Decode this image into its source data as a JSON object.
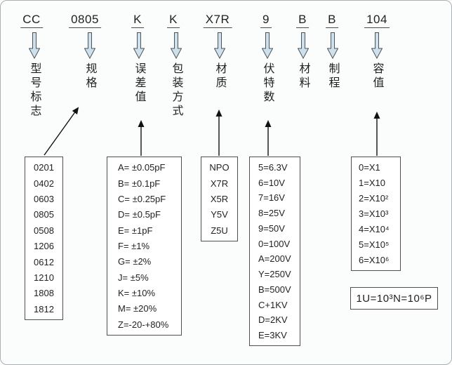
{
  "columns": [
    {
      "code": "CC",
      "label": "型号标志"
    },
    {
      "code": "0805",
      "label": "规格"
    },
    {
      "code": "K",
      "label": "误差值"
    },
    {
      "code": "K",
      "label": "包装方式"
    },
    {
      "code": "X7R",
      "label": "材质"
    },
    {
      "code": "9",
      "label": "伏特数"
    },
    {
      "code": "B",
      "label": "材料"
    },
    {
      "code": "B",
      "label": "制程"
    },
    {
      "code": "104",
      "label": "容值"
    }
  ],
  "boxes": {
    "sizes": [
      "0201",
      "0402",
      "0603",
      "0805",
      "0508",
      "1206",
      "0612",
      "1210",
      "1808",
      "1812"
    ],
    "tolerance": [
      "A= ±0.05pF",
      "B= ±0.1pF",
      "C= ±0.25pF",
      "D= ±0.5pF",
      "E= ±1pF",
      "F= ±1%",
      "G= ±2%",
      "J= ±5%",
      "K= ±10%",
      "M= ±20%",
      "Z=-20-+80%"
    ],
    "dielectric": [
      "NPO",
      "X7R",
      "X5R",
      "Y5V",
      "Z5U"
    ],
    "voltage": [
      "5=6.3V",
      "6=10V",
      "7=16V",
      "8=25V",
      "9=50V",
      "0=100V",
      "A=200V",
      "Y=250V",
      "B=500V",
      "C+1KV",
      "D=2KV",
      "E=3KV"
    ],
    "multiplier": [
      "0=X1",
      "1=X10",
      "2=X10²",
      "3=X10³",
      "4=X10⁴",
      "5=X10⁵",
      "6=X10⁶"
    ]
  },
  "note": "1U=10³N=10⁶P",
  "icons": {
    "down_block_arrow": "light-blue block arrow pointing down",
    "up_thin_arrow": "thin black line arrow pointing up"
  },
  "colors": {
    "arrow_fill": "#cfe0ea",
    "arrow_stroke": "#46555f",
    "box_border": "#4f4f4f",
    "text": "#1f1f1f",
    "background": "#fbfcfc"
  }
}
